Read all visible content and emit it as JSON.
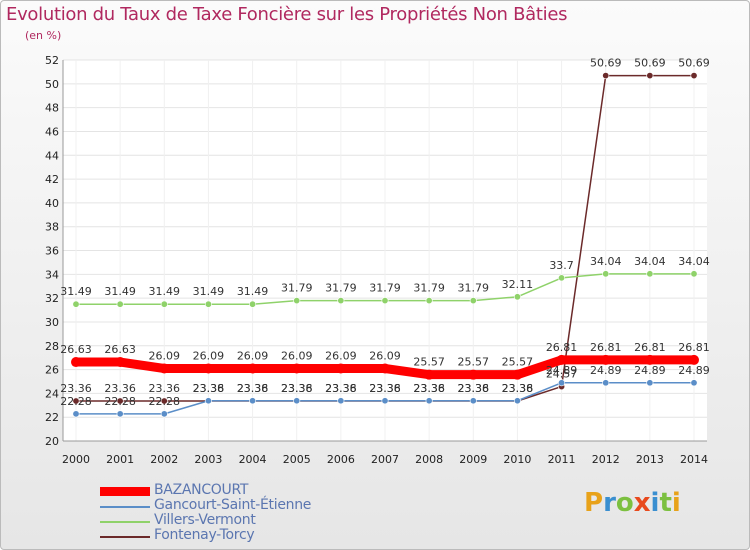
{
  "header": {
    "title": "Evolution du Taux de Taxe Foncière sur les Propriétés Non Bâties",
    "subtitle": "(en %)"
  },
  "logo": {
    "text": "ProXiti",
    "letters": [
      "P",
      "r",
      "o",
      "x",
      "i",
      "t",
      "i"
    ],
    "colors": [
      "#e8a21a",
      "#3a8fd0",
      "#7cc040",
      "#e8491d",
      "#3a8fd0",
      "#7cc040",
      "#e8a21a"
    ]
  },
  "chart_data": {
    "type": "line",
    "title": "Evolution du Taux de Taxe Foncière sur les Propriétés Non Bâties",
    "ylabel": "(en %)",
    "xlabel": "",
    "x": [
      "2000",
      "2001",
      "2002",
      "2003",
      "2004",
      "2005",
      "2006",
      "2007",
      "2008",
      "2009",
      "2010",
      "2011",
      "2012",
      "2013",
      "2014"
    ],
    "ylim": [
      20,
      52
    ],
    "yticks": [
      20,
      22,
      24,
      26,
      28,
      30,
      32,
      34,
      36,
      38,
      40,
      42,
      44,
      46,
      48,
      50,
      52
    ],
    "grid": true,
    "series": [
      {
        "name": "BAZANCOURT",
        "color": "#ff0000",
        "values": [
          26.63,
          26.63,
          26.09,
          26.09,
          26.09,
          26.09,
          26.09,
          26.09,
          25.57,
          25.57,
          25.57,
          26.81,
          26.81,
          26.81,
          26.81
        ],
        "labels": [
          "26.63",
          "26.63",
          "26.09",
          "26.09",
          "26.09",
          "26.09",
          "26.09",
          "26.09",
          "25.57",
          "25.57",
          "25.57",
          "26.81",
          "26.81",
          "26.81",
          "26.81"
        ]
      },
      {
        "name": "Gancourt-Saint-Étienne",
        "color": "#5b8ec8",
        "values": [
          22.28,
          22.28,
          22.28,
          23.38,
          23.38,
          23.38,
          23.38,
          23.38,
          23.38,
          23.38,
          23.38,
          24.89,
          24.89,
          24.89,
          24.89
        ],
        "labels": [
          "22.28",
          "22.28",
          "22.28",
          "23.38",
          "23.38",
          "23.38",
          "23.38",
          "23.38",
          "23.38",
          "23.38",
          "23.38",
          "24.89",
          "24.89",
          "24.89",
          "24.89"
        ]
      },
      {
        "name": "Villers-Vermont",
        "color": "#8fd26a",
        "values": [
          31.49,
          31.49,
          31.49,
          31.49,
          31.49,
          31.79,
          31.79,
          31.79,
          31.79,
          31.79,
          32.11,
          33.7,
          34.04,
          34.04,
          34.04
        ],
        "labels": [
          "31.49",
          "31.49",
          "31.49",
          "31.49",
          "31.49",
          "31.79",
          "31.79",
          "31.79",
          "31.79",
          "31.79",
          "32.11",
          "33.7",
          "34.04",
          "34.04",
          "34.04"
        ]
      },
      {
        "name": "Fontenay-Torcy",
        "color": "#6b2a2a",
        "values": [
          23.36,
          23.36,
          23.36,
          23.36,
          23.36,
          23.36,
          23.36,
          23.36,
          23.36,
          23.36,
          23.36,
          24.57,
          50.69,
          50.69,
          50.69
        ],
        "labels": [
          "23.36",
          "23.36",
          "23.36",
          "23.36",
          "23.36",
          "23.36",
          "23.36",
          "23.36",
          "23.36",
          "23.36",
          "23.36",
          "24.57",
          "50.69",
          "50.69",
          "50.69"
        ]
      }
    ],
    "legend": "bottom-left"
  }
}
